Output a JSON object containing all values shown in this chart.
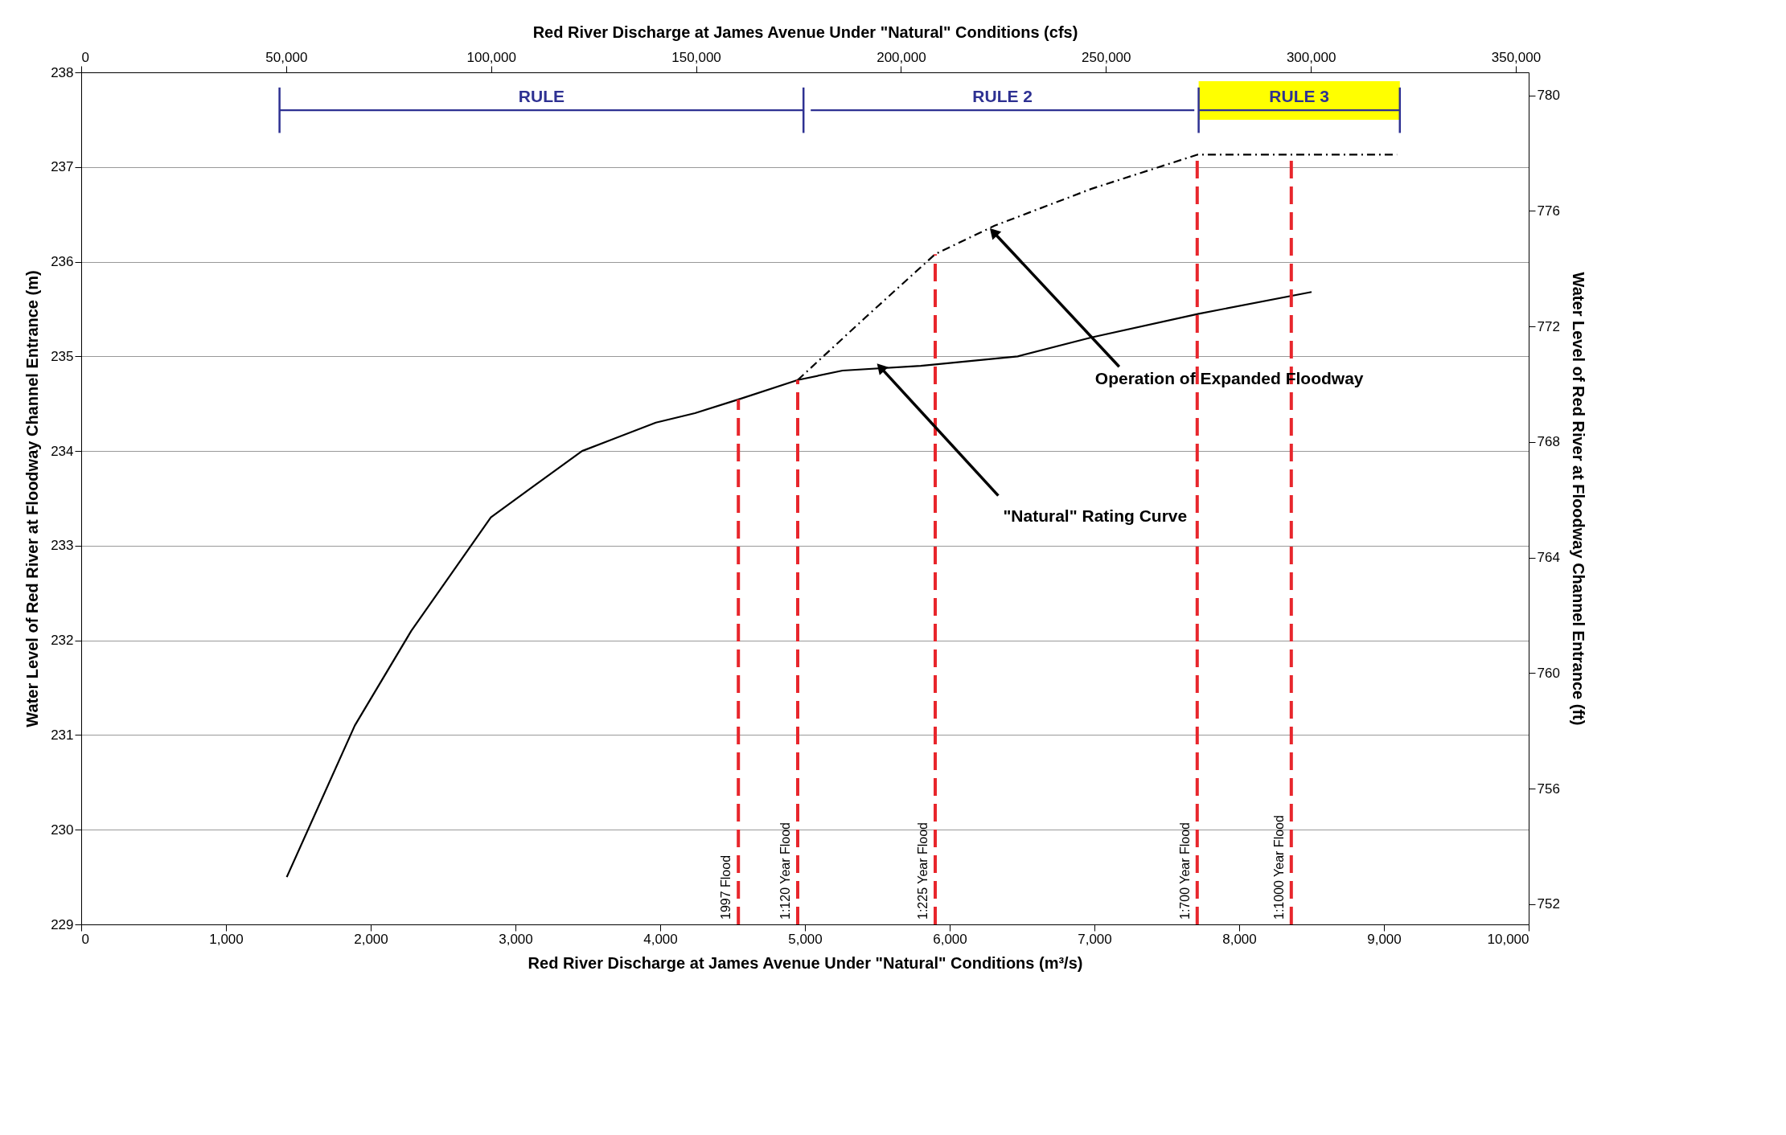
{
  "chart_data": {
    "type": "line",
    "title": "Red River Discharge at James Avenue Under \"Natural\" Conditions (cfs)",
    "xlabel": "Red River Discharge at James Avenue Under \"Natural\" Conditions (m³/s)",
    "ylabel": "Water Level of Red River at Floodway Channel Entrance (m)",
    "y2label": "Water Level of Red River at Floodway Channel Entrance (ft)",
    "xlim": [
      0,
      10000
    ],
    "xticks": [
      0,
      {
        "value": 1000,
        "label": "1,000"
      },
      {
        "value": 2000,
        "label": "2,000"
      },
      {
        "value": 3000,
        "label": "3,000"
      },
      {
        "value": 4000,
        "label": "4,000"
      },
      {
        "value": 5000,
        "label": "5,000"
      },
      {
        "value": 6000,
        "label": "6,000"
      },
      {
        "value": 7000,
        "label": "7,000"
      },
      {
        "value": 8000,
        "label": "8,000"
      },
      {
        "value": 9000,
        "label": "9,000"
      },
      {
        "value": 10000,
        "label": "10,000"
      }
    ],
    "x2lim": [
      0,
      353147
    ],
    "x2ticks": [
      0,
      {
        "value": 50000,
        "label": "50,000"
      },
      {
        "value": 100000,
        "label": "100,000"
      },
      {
        "value": 150000,
        "label": "150,000"
      },
      {
        "value": 200000,
        "label": "200,000"
      },
      {
        "value": 250000,
        "label": "250,000"
      },
      {
        "value": 300000,
        "label": "300,000"
      },
      {
        "value": 350000,
        "label": "350,000"
      }
    ],
    "bands": [
      {
        "axis": "x",
        "from": 7720,
        "to": 9110,
        "color": "#ffff00"
      }
    ],
    "ylim": [
      229,
      238
    ],
    "yticks": [
      229,
      230,
      231,
      232,
      233,
      234,
      235,
      236,
      237,
      238
    ],
    "y2lim": [
      751.3,
      780.8
    ],
    "y2ticks": [
      752,
      756,
      760,
      764,
      768,
      772,
      776,
      780
    ],
    "grid": "y",
    "marker": "none",
    "series": [
      {
        "color": "#000000",
        "line_style": "solid",
        "x": [
          1420,
          1890,
          2280,
          2830,
          3100,
          3460,
          3970,
          4240,
          4550,
          4950,
          5260,
          5800,
          6470,
          6980,
          7720,
          8500
        ],
        "values": [
          229.5,
          231.1,
          232.1,
          233.3,
          233.6,
          234.0,
          234.3,
          234.4,
          234.55,
          234.75,
          234.85,
          234.9,
          235.0,
          235.2,
          235.45,
          235.68
        ]
      },
      {
        "color": "#000000",
        "line_style": "dashed",
        "x": [
          4950,
          5410,
          5900,
          6310,
          6980,
          7710,
          9090
        ],
        "values": [
          234.75,
          235.4,
          236.08,
          236.38,
          236.77,
          237.13,
          237.13
        ]
      },
      {
        "name": "RULE",
        "color": "#2e3192",
        "line_style": "solid",
        "x": [
          1370,
          4990
        ],
        "values": [
          237.6,
          237.6
        ],
        "errors": [
          0.24,
          0.24
        ]
      },
      {
        "name": "RULE 2",
        "color": "#2e3192",
        "line_style": "solid",
        "x": [
          5040,
          7690
        ],
        "values": [
          237.6,
          237.6
        ]
      },
      {
        "name": "RULE 3",
        "color": "#2e3192",
        "line_style": "solid",
        "x": [
          7720,
          9110
        ],
        "values": [
          237.6,
          237.6
        ],
        "errors": [
          0.24,
          0.24
        ]
      }
    ],
    "ref_lines": [
      {
        "axis": "x",
        "value": 4540,
        "color": "#e8262c",
        "line_style": "dashed"
      },
      {
        "axis": "x",
        "value": 4950,
        "color": "#e8262c",
        "line_style": "dashed"
      },
      {
        "axis": "x",
        "value": 5900,
        "color": "#e8262c",
        "line_style": "dashed"
      },
      {
        "axis": "x",
        "value": 7710,
        "color": "#e8262c",
        "line_style": "dashed"
      },
      {
        "axis": "x",
        "value": 8360,
        "color": "#e8262c",
        "line_style": "dashed"
      }
    ],
    "annotations": [
      {
        "text": "Operation of Expanded Floodway",
        "x": 6310,
        "y": 236.3
      },
      {
        "text": "\"Natural\" Rating Curve",
        "x": 5530,
        "y": 234.87
      },
      {
        "text": "1997 Flood",
        "x": 4540,
        "y": 229
      },
      {
        "text": "1:120 Year Flood",
        "x": 4950,
        "y": 229
      },
      {
        "text": "1:225 Year Flood",
        "x": 5900,
        "y": 229
      },
      {
        "text": "1:700 Year Flood",
        "x": 7710,
        "y": 229
      },
      {
        "text": "1:1000 Year Flood",
        "x": 8360,
        "y": 229
      }
    ]
  }
}
